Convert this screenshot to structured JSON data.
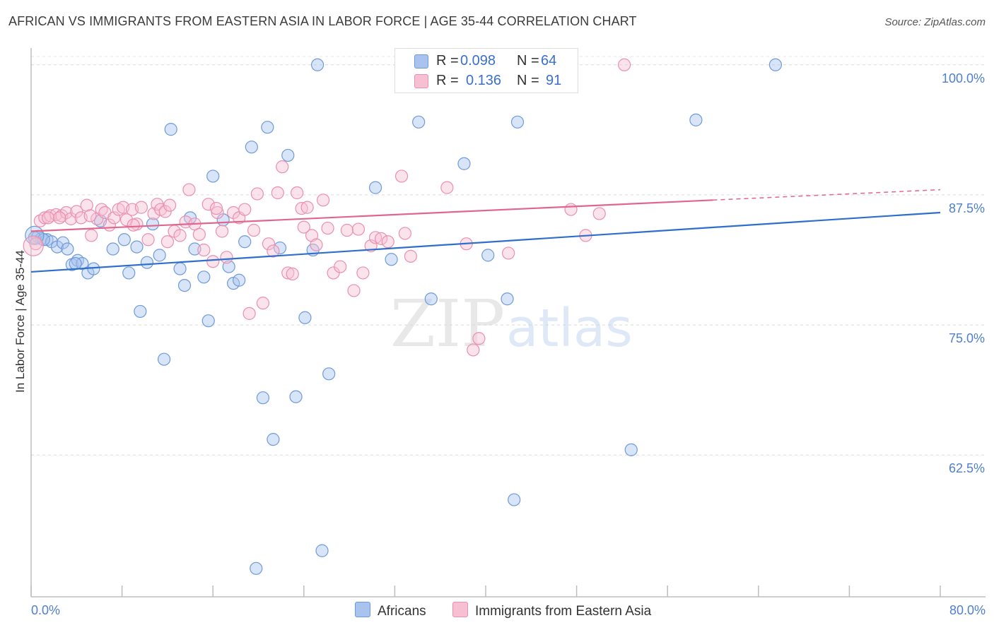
{
  "header": {
    "title": "AFRICAN VS IMMIGRANTS FROM EASTERN ASIA IN LABOR FORCE | AGE 35-44 CORRELATION CHART",
    "source": "Source: ZipAtlas.com"
  },
  "watermark": {
    "zip": "ZIP",
    "atlas": "atlas"
  },
  "legend": {
    "africans": {
      "r_label": "R =",
      "r_value": "0.098",
      "n_label": "N =",
      "n_value": "64"
    },
    "eastern_asia": {
      "r_label": "R =",
      "r_value": "0.136",
      "n_label": "N =",
      "n_value": "91"
    }
  },
  "bottom_legend": {
    "africans": "Africans",
    "eastern_asia": "Immigrants from Eastern Asia"
  },
  "colors": {
    "africans_fill": "#a8c4ee",
    "africans_stroke": "#6f9ad9",
    "africans_line": "#2f6fcc",
    "eastern_asia_fill": "#f6c0d2",
    "eastern_asia_stroke": "#ea8fb0",
    "eastern_asia_line": "#e0668e",
    "tick_label": "#4f7fcf"
  },
  "chart_data": {
    "type": "scatter",
    "title": "AFRICAN VS IMMIGRANTS FROM EASTERN ASIA IN LABOR FORCE | AGE 35-44 CORRELATION CHART",
    "ylabel": "In Labor Force | Age 35-44",
    "xlabel": "",
    "xlim": [
      0,
      80
    ],
    "ylim": [
      50.5,
      100.8
    ],
    "x_tick_labels": [
      "0.0%",
      "80.0%"
    ],
    "y_ticks": [
      100.0,
      87.5,
      75.0,
      62.5
    ],
    "y_tick_labels": [
      "100.0%",
      "87.5%",
      "75.0%",
      "62.5%"
    ],
    "grid": "horizontal dashed",
    "legend_position": "top-center",
    "series": [
      {
        "name": "Africans",
        "points": [
          [
            0.6,
            83.5
          ],
          [
            0.9,
            83.3
          ],
          [
            1.4,
            83.2
          ],
          [
            1.8,
            83.0
          ],
          [
            2.3,
            82.5
          ],
          [
            2.8,
            82.9
          ],
          [
            3.2,
            82.3
          ],
          [
            3.6,
            80.8
          ],
          [
            4.1,
            81.2
          ],
          [
            4.5,
            80.9
          ],
          [
            5.0,
            80.0
          ],
          [
            5.5,
            80.4
          ],
          [
            6.1,
            85.0
          ],
          [
            7.2,
            82.3
          ],
          [
            8.2,
            83.2
          ],
          [
            8.6,
            80.0
          ],
          [
            9.3,
            82.5
          ],
          [
            9.6,
            76.3
          ],
          [
            10.2,
            81.0
          ],
          [
            10.7,
            84.7
          ],
          [
            11.3,
            81.7
          ],
          [
            11.7,
            71.7
          ],
          [
            12.3,
            93.8
          ],
          [
            13.1,
            80.4
          ],
          [
            13.5,
            78.8
          ],
          [
            14.0,
            85.3
          ],
          [
            14.4,
            82.3
          ],
          [
            15.2,
            79.6
          ],
          [
            15.6,
            75.4
          ],
          [
            16.0,
            89.3
          ],
          [
            16.9,
            85.1
          ],
          [
            17.4,
            80.6
          ],
          [
            17.8,
            79.0
          ],
          [
            18.3,
            79.3
          ],
          [
            18.8,
            83.0
          ],
          [
            19.4,
            92.1
          ],
          [
            19.8,
            51.6
          ],
          [
            20.4,
            68.0
          ],
          [
            20.8,
            94.0
          ],
          [
            21.3,
            64.0
          ],
          [
            21.9,
            82.4
          ],
          [
            22.6,
            91.3
          ],
          [
            23.3,
            68.1
          ],
          [
            24.1,
            75.7
          ],
          [
            24.8,
            82.2
          ],
          [
            25.2,
            100.0
          ],
          [
            25.6,
            53.3
          ],
          [
            26.2,
            70.3
          ],
          [
            30.3,
            88.2
          ],
          [
            31.7,
            81.3
          ],
          [
            33.0,
            100.0
          ],
          [
            34.1,
            94.5
          ],
          [
            35.2,
            77.5
          ],
          [
            38.1,
            90.5
          ],
          [
            40.2,
            81.7
          ],
          [
            41.9,
            77.5
          ],
          [
            42.5,
            58.2
          ],
          [
            42.8,
            94.5
          ],
          [
            52.8,
            63.0
          ],
          [
            58.5,
            94.7
          ],
          [
            65.5,
            100.0
          ],
          [
            0.3,
            83.4
          ],
          [
            1.1,
            83.2
          ],
          [
            3.9,
            80.9
          ]
        ],
        "trend": {
          "x": [
            0,
            80
          ],
          "y": [
            80.1,
            85.8
          ]
        }
      },
      {
        "name": "Immigrants from Eastern Asia",
        "points": [
          [
            0.4,
            82.8
          ],
          [
            0.8,
            85.0
          ],
          [
            1.2,
            85.3
          ],
          [
            1.7,
            85.5
          ],
          [
            2.2,
            85.6
          ],
          [
            2.7,
            85.5
          ],
          [
            3.1,
            85.8
          ],
          [
            3.5,
            85.2
          ],
          [
            4.0,
            85.9
          ],
          [
            4.4,
            85.3
          ],
          [
            4.9,
            86.5
          ],
          [
            5.3,
            83.6
          ],
          [
            5.8,
            85.2
          ],
          [
            6.2,
            86.1
          ],
          [
            6.5,
            85.8
          ],
          [
            6.9,
            84.6
          ],
          [
            7.3,
            85.3
          ],
          [
            7.7,
            86.1
          ],
          [
            8.1,
            86.3
          ],
          [
            8.4,
            85.1
          ],
          [
            8.9,
            86.1
          ],
          [
            9.3,
            84.7
          ],
          [
            9.7,
            86.3
          ],
          [
            10.3,
            83.2
          ],
          [
            10.8,
            85.7
          ],
          [
            11.1,
            86.6
          ],
          [
            11.4,
            86.1
          ],
          [
            11.8,
            85.9
          ],
          [
            12.2,
            86.5
          ],
          [
            12.6,
            84.0
          ],
          [
            13.1,
            83.6
          ],
          [
            13.6,
            84.9
          ],
          [
            13.9,
            88.0
          ],
          [
            14.4,
            84.7
          ],
          [
            14.8,
            83.7
          ],
          [
            15.2,
            82.2
          ],
          [
            15.6,
            86.6
          ],
          [
            16.0,
            81.1
          ],
          [
            16.4,
            85.8
          ],
          [
            16.8,
            84.0
          ],
          [
            17.2,
            81.5
          ],
          [
            17.8,
            85.8
          ],
          [
            18.3,
            85.3
          ],
          [
            18.8,
            86.1
          ],
          [
            19.2,
            76.1
          ],
          [
            19.6,
            84.1
          ],
          [
            19.9,
            87.6
          ],
          [
            20.4,
            77.1
          ],
          [
            20.9,
            82.8
          ],
          [
            21.3,
            82.1
          ],
          [
            21.7,
            87.7
          ],
          [
            22.1,
            90.2
          ],
          [
            22.6,
            80.0
          ],
          [
            23.0,
            79.9
          ],
          [
            23.4,
            87.7
          ],
          [
            23.8,
            86.2
          ],
          [
            24.3,
            86.3
          ],
          [
            24.7,
            83.6
          ],
          [
            25.1,
            82.7
          ],
          [
            25.7,
            87.0
          ],
          [
            26.1,
            84.3
          ],
          [
            26.6,
            80.0
          ],
          [
            27.2,
            80.6
          ],
          [
            27.8,
            84.1
          ],
          [
            28.4,
            78.3
          ],
          [
            28.8,
            84.2
          ],
          [
            29.2,
            80.0
          ],
          [
            29.9,
            82.6
          ],
          [
            30.3,
            83.4
          ],
          [
            30.8,
            83.3
          ],
          [
            31.4,
            83.0
          ],
          [
            32.6,
            89.3
          ],
          [
            32.9,
            83.8
          ],
          [
            33.4,
            81.6
          ],
          [
            35.1,
            100.0
          ],
          [
            36.6,
            88.2
          ],
          [
            38.3,
            82.8
          ],
          [
            38.9,
            72.6
          ],
          [
            39.4,
            73.7
          ],
          [
            42.0,
            81.9
          ],
          [
            47.5,
            86.1
          ],
          [
            48.8,
            83.6
          ],
          [
            50.0,
            85.7
          ],
          [
            52.2,
            100.0
          ],
          [
            1.5,
            85.3
          ],
          [
            2.5,
            85.3
          ],
          [
            5.2,
            85.5
          ],
          [
            9.0,
            84.6
          ],
          [
            12.0,
            83.0
          ],
          [
            16.3,
            86.2
          ],
          [
            24.0,
            84.4
          ]
        ],
        "trend": {
          "x": [
            0,
            60
          ],
          "y": [
            84.0,
            87.0
          ]
        },
        "trend_extension": {
          "x": [
            60,
            80
          ],
          "y": [
            87.0,
            88.0
          ]
        }
      }
    ]
  }
}
